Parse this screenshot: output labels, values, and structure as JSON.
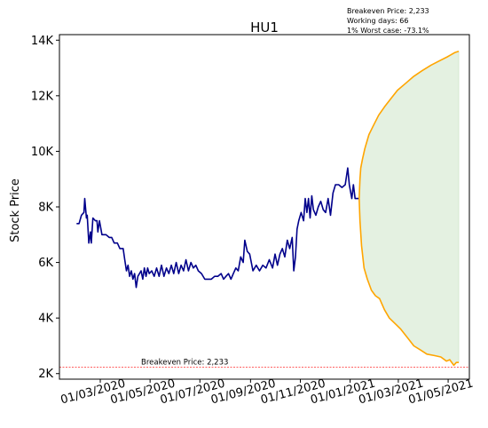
{
  "chart_data": {
    "type": "line",
    "title": "HU1",
    "ylabel": "Stock Price",
    "xlabel": "",
    "ylim": [
      1800,
      14200
    ],
    "x_range": [
      "2020-01-11",
      "2021-05-27"
    ],
    "y_ticks": [
      2000,
      4000,
      6000,
      8000,
      10000,
      12000,
      14000
    ],
    "y_tick_labels": [
      "2K",
      "4K",
      "6K",
      "8K",
      "10K",
      "12K",
      "14K"
    ],
    "x_ticks": [
      "2020-03-01",
      "2020-05-01",
      "2020-07-01",
      "2020-09-01",
      "2020-11-01",
      "2021-01-01",
      "2021-03-01",
      "2021-05-01"
    ],
    "x_tick_labels": [
      "01/03/2020",
      "01/05/2020",
      "01/07/2020",
      "01/09/2020",
      "01/11/2020",
      "01/01/2021",
      "01/03/2021",
      "01/05/2021"
    ],
    "grid": false,
    "breakeven_line": {
      "value": 2233,
      "label": "Breakeven Price: 2,233",
      "color": "#ff0000"
    },
    "annotations": [
      "Breakeven Price: 2,233",
      "Working days: 66",
      "1% Worst case: -73.1%"
    ],
    "series": [
      {
        "role": "history",
        "color": "#00008b",
        "points": [
          [
            "2020-02-01",
            7400
          ],
          [
            "2020-02-04",
            7400
          ],
          [
            "2020-02-07",
            7700
          ],
          [
            "2020-02-10",
            7800
          ],
          [
            "2020-02-11",
            8300
          ],
          [
            "2020-02-13",
            7600
          ],
          [
            "2020-02-14",
            7700
          ],
          [
            "2020-02-16",
            6700
          ],
          [
            "2020-02-18",
            7100
          ],
          [
            "2020-02-19",
            6700
          ],
          [
            "2020-02-21",
            7600
          ],
          [
            "2020-02-24",
            7500
          ],
          [
            "2020-02-26",
            7500
          ],
          [
            "2020-02-27",
            7100
          ],
          [
            "2020-02-29",
            7500
          ],
          [
            "2020-03-03",
            7000
          ],
          [
            "2020-03-08",
            7000
          ],
          [
            "2020-03-12",
            6900
          ],
          [
            "2020-03-15",
            6900
          ],
          [
            "2020-03-18",
            6700
          ],
          [
            "2020-03-22",
            6700
          ],
          [
            "2020-03-25",
            6500
          ],
          [
            "2020-03-29",
            6500
          ],
          [
            "2020-03-31",
            6100
          ],
          [
            "2020-04-02",
            5700
          ],
          [
            "2020-04-04",
            5900
          ],
          [
            "2020-04-06",
            5500
          ],
          [
            "2020-04-08",
            5700
          ],
          [
            "2020-04-10",
            5400
          ],
          [
            "2020-04-12",
            5600
          ],
          [
            "2020-04-14",
            5100
          ],
          [
            "2020-04-16",
            5500
          ],
          [
            "2020-04-18",
            5600
          ],
          [
            "2020-04-20",
            5700
          ],
          [
            "2020-04-22",
            5400
          ],
          [
            "2020-04-24",
            5800
          ],
          [
            "2020-04-26",
            5500
          ],
          [
            "2020-04-28",
            5800
          ],
          [
            "2020-04-30",
            5600
          ],
          [
            "2020-05-03",
            5700
          ],
          [
            "2020-05-06",
            5500
          ],
          [
            "2020-05-09",
            5800
          ],
          [
            "2020-05-12",
            5500
          ],
          [
            "2020-05-15",
            5900
          ],
          [
            "2020-05-18",
            5500
          ],
          [
            "2020-05-21",
            5800
          ],
          [
            "2020-05-24",
            5600
          ],
          [
            "2020-05-27",
            5900
          ],
          [
            "2020-05-30",
            5600
          ],
          [
            "2020-06-02",
            6000
          ],
          [
            "2020-06-05",
            5600
          ],
          [
            "2020-06-08",
            5900
          ],
          [
            "2020-06-11",
            5700
          ],
          [
            "2020-06-14",
            6100
          ],
          [
            "2020-06-17",
            5700
          ],
          [
            "2020-06-20",
            6000
          ],
          [
            "2020-06-23",
            5800
          ],
          [
            "2020-06-26",
            5900
          ],
          [
            "2020-06-29",
            5700
          ],
          [
            "2020-07-03",
            5600
          ],
          [
            "2020-07-07",
            5400
          ],
          [
            "2020-07-11",
            5400
          ],
          [
            "2020-07-15",
            5400
          ],
          [
            "2020-07-19",
            5500
          ],
          [
            "2020-07-23",
            5500
          ],
          [
            "2020-07-27",
            5600
          ],
          [
            "2020-07-30",
            5400
          ],
          [
            "2020-08-02",
            5500
          ],
          [
            "2020-08-05",
            5600
          ],
          [
            "2020-08-08",
            5400
          ],
          [
            "2020-08-11",
            5600
          ],
          [
            "2020-08-14",
            5800
          ],
          [
            "2020-08-17",
            5700
          ],
          [
            "2020-08-20",
            6200
          ],
          [
            "2020-08-23",
            6000
          ],
          [
            "2020-08-25",
            6800
          ],
          [
            "2020-08-28",
            6400
          ],
          [
            "2020-08-31",
            6300
          ],
          [
            "2020-09-04",
            5700
          ],
          [
            "2020-09-08",
            5900
          ],
          [
            "2020-09-12",
            5700
          ],
          [
            "2020-09-16",
            5900
          ],
          [
            "2020-09-20",
            5800
          ],
          [
            "2020-09-24",
            6100
          ],
          [
            "2020-09-28",
            5800
          ],
          [
            "2020-10-01",
            6300
          ],
          [
            "2020-10-04",
            5900
          ],
          [
            "2020-10-07",
            6300
          ],
          [
            "2020-10-10",
            6500
          ],
          [
            "2020-10-13",
            6200
          ],
          [
            "2020-10-16",
            6800
          ],
          [
            "2020-10-19",
            6500
          ],
          [
            "2020-10-22",
            6900
          ],
          [
            "2020-10-24",
            5700
          ],
          [
            "2020-10-26",
            6200
          ],
          [
            "2020-10-28",
            7200
          ],
          [
            "2020-10-30",
            7500
          ],
          [
            "2020-11-02",
            7800
          ],
          [
            "2020-11-05",
            7500
          ],
          [
            "2020-11-07",
            8300
          ],
          [
            "2020-11-09",
            7800
          ],
          [
            "2020-11-11",
            8300
          ],
          [
            "2020-11-13",
            7600
          ],
          [
            "2020-11-15",
            8400
          ],
          [
            "2020-11-17",
            7900
          ],
          [
            "2020-11-20",
            7700
          ],
          [
            "2020-11-23",
            8000
          ],
          [
            "2020-11-26",
            8200
          ],
          [
            "2020-11-29",
            7900
          ],
          [
            "2020-12-02",
            7800
          ],
          [
            "2020-12-05",
            8300
          ],
          [
            "2020-12-08",
            7700
          ],
          [
            "2020-12-11",
            8500
          ],
          [
            "2020-12-14",
            8800
          ],
          [
            "2020-12-18",
            8800
          ],
          [
            "2020-12-22",
            8700
          ],
          [
            "2020-12-26",
            8800
          ],
          [
            "2020-12-29",
            9400
          ],
          [
            "2020-12-31",
            8800
          ],
          [
            "2021-01-03",
            8300
          ],
          [
            "2021-01-05",
            8800
          ],
          [
            "2021-01-07",
            8300
          ],
          [
            "2021-01-10",
            8300
          ],
          [
            "2021-01-12",
            8300
          ]
        ]
      },
      {
        "role": "projection-upper",
        "color": "#ffa500",
        "points": [
          [
            "2021-01-12",
            8300
          ],
          [
            "2021-01-13",
            9000
          ],
          [
            "2021-01-14",
            9400
          ],
          [
            "2021-01-16",
            9700
          ],
          [
            "2021-01-19",
            10100
          ],
          [
            "2021-01-24",
            10600
          ],
          [
            "2021-01-29",
            10900
          ],
          [
            "2021-02-05",
            11300
          ],
          [
            "2021-02-12",
            11600
          ],
          [
            "2021-02-20",
            11900
          ],
          [
            "2021-02-28",
            12200
          ],
          [
            "2021-03-10",
            12450
          ],
          [
            "2021-03-20",
            12700
          ],
          [
            "2021-03-30",
            12900
          ],
          [
            "2021-04-10",
            13100
          ],
          [
            "2021-04-20",
            13250
          ],
          [
            "2021-04-30",
            13400
          ],
          [
            "2021-05-09",
            13550
          ],
          [
            "2021-05-14",
            13600
          ]
        ]
      },
      {
        "role": "projection-lower",
        "color": "#ffa500",
        "points": [
          [
            "2021-01-12",
            8300
          ],
          [
            "2021-01-13",
            7500
          ],
          [
            "2021-01-15",
            6600
          ],
          [
            "2021-01-18",
            5800
          ],
          [
            "2021-01-22",
            5400
          ],
          [
            "2021-01-27",
            5000
          ],
          [
            "2021-02-01",
            4800
          ],
          [
            "2021-02-06",
            4700
          ],
          [
            "2021-02-12",
            4300
          ],
          [
            "2021-02-18",
            4000
          ],
          [
            "2021-02-25",
            3800
          ],
          [
            "2021-03-04",
            3600
          ],
          [
            "2021-03-12",
            3300
          ],
          [
            "2021-03-20",
            3000
          ],
          [
            "2021-03-28",
            2850
          ],
          [
            "2021-04-05",
            2700
          ],
          [
            "2021-04-14",
            2650
          ],
          [
            "2021-04-22",
            2600
          ],
          [
            "2021-04-29",
            2450
          ],
          [
            "2021-05-03",
            2500
          ],
          [
            "2021-05-08",
            2300
          ],
          [
            "2021-05-11",
            2400
          ],
          [
            "2021-05-14",
            2400
          ]
        ]
      }
    ],
    "fill_between": {
      "upper": "projection-upper",
      "lower": "projection-lower",
      "color": "#e4f1e1"
    }
  }
}
